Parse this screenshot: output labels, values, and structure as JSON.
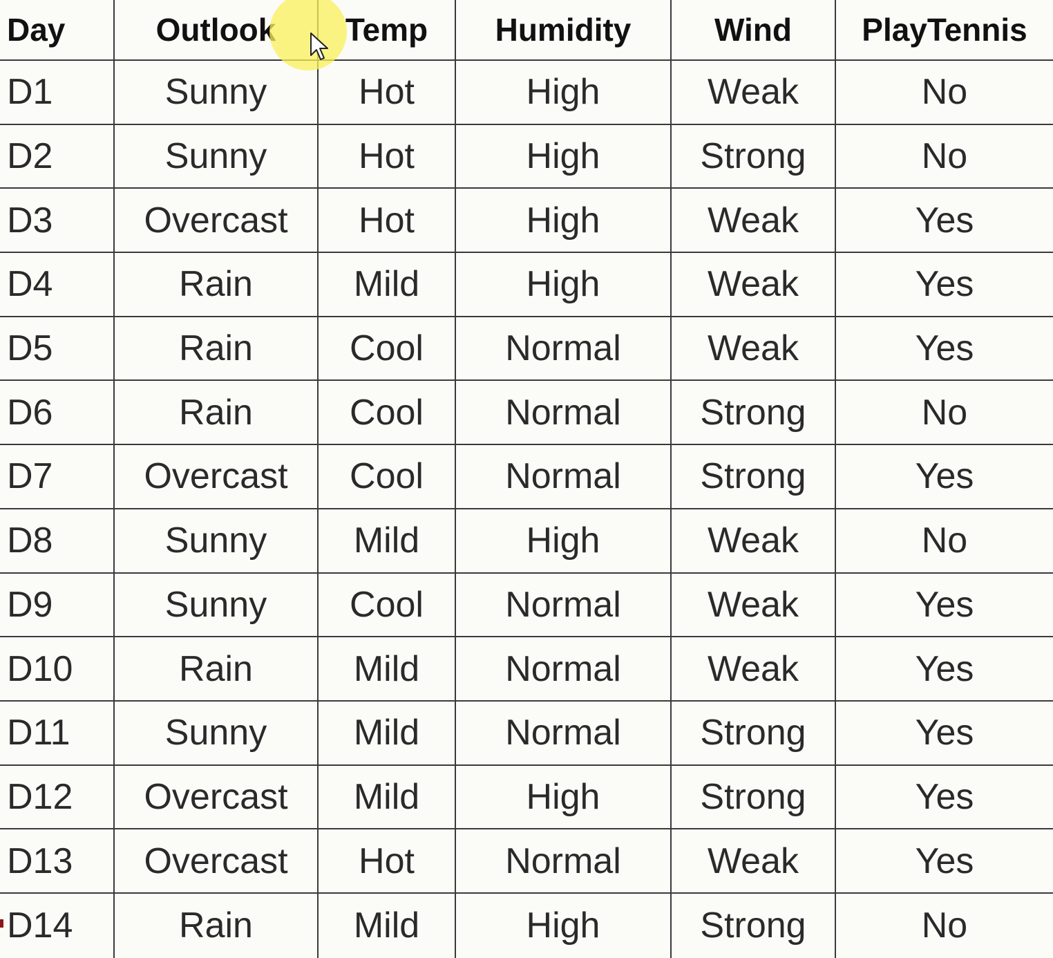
{
  "table": {
    "headers": [
      "Day",
      "Outlook",
      "Temp",
      "Humidity",
      "Wind",
      "PlayTennis"
    ],
    "rows": [
      [
        "D1",
        "Sunny",
        "Hot",
        "High",
        "Weak",
        "No"
      ],
      [
        "D2",
        "Sunny",
        "Hot",
        "High",
        "Strong",
        "No"
      ],
      [
        "D3",
        "Overcast",
        "Hot",
        "High",
        "Weak",
        "Yes"
      ],
      [
        "D4",
        "Rain",
        "Mild",
        "High",
        "Weak",
        "Yes"
      ],
      [
        "D5",
        "Rain",
        "Cool",
        "Normal",
        "Weak",
        "Yes"
      ],
      [
        "D6",
        "Rain",
        "Cool",
        "Normal",
        "Strong",
        "No"
      ],
      [
        "D7",
        "Overcast",
        "Cool",
        "Normal",
        "Strong",
        "Yes"
      ],
      [
        "D8",
        "Sunny",
        "Mild",
        "High",
        "Weak",
        "No"
      ],
      [
        "D9",
        "Sunny",
        "Cool",
        "Normal",
        "Weak",
        "Yes"
      ],
      [
        "D10",
        "Rain",
        "Mild",
        "Normal",
        "Weak",
        "Yes"
      ],
      [
        "D11",
        "Sunny",
        "Mild",
        "Normal",
        "Strong",
        "Yes"
      ],
      [
        "D12",
        "Overcast",
        "Mild",
        "High",
        "Strong",
        "Yes"
      ],
      [
        "D13",
        "Overcast",
        "Hot",
        "Normal",
        "Weak",
        "Yes"
      ],
      [
        "D14",
        "Rain",
        "Mild",
        "High",
        "Strong",
        "No"
      ]
    ]
  },
  "colors": {
    "background": "#fbfbf8",
    "grid_line": "#3a3a3a",
    "cursor_highlight": "#faf05a"
  },
  "cursor": {
    "icon": "mouse-pointer-icon"
  }
}
